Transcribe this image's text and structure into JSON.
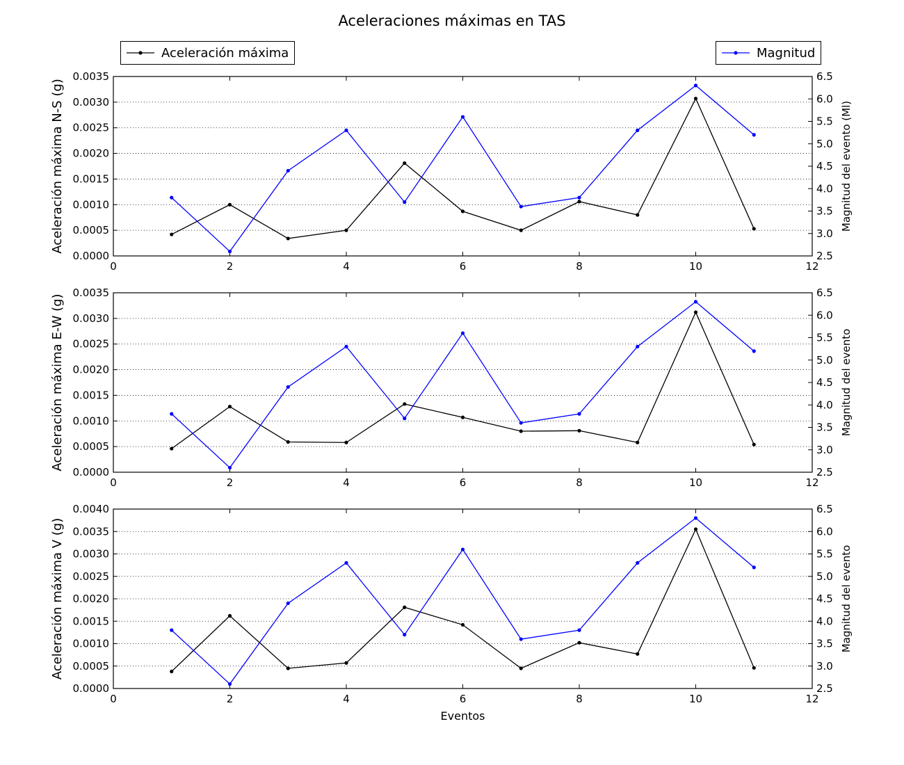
{
  "title": "Aceleraciones máximas en TAS",
  "legend": {
    "left": {
      "label": "Aceleración máxima",
      "color": "#000000"
    },
    "right": {
      "label": "Magnitud",
      "color": "#0000ff"
    }
  },
  "colors": {
    "acceleration": "#000000",
    "magnitude": "#0000ff",
    "grid": "#000000"
  },
  "chart_data": [
    {
      "type": "line",
      "x": [
        1,
        2,
        3,
        4,
        5,
        6,
        7,
        8,
        9,
        10,
        11
      ],
      "xlim": [
        0,
        12
      ],
      "xticks": [
        "0",
        "2",
        "4",
        "6",
        "8",
        "10",
        "12"
      ],
      "xlabel": "",
      "ylabel": "Aceleración máxima N-S (g)",
      "ylim": [
        0,
        0.0035
      ],
      "yticks": [
        "0.0000",
        "0.0005",
        "0.0010",
        "0.0015",
        "0.0020",
        "0.0025",
        "0.0030",
        "0.0035"
      ],
      "y2label": "Magnitud del evento (Ml)",
      "y2lim": [
        2.5,
        6.5
      ],
      "y2ticks": [
        "2.5",
        "3.0",
        "3.5",
        "4.0",
        "4.5",
        "5.0",
        "5.5",
        "6.0",
        "6.5"
      ],
      "grid": "horizontal dotted",
      "series": [
        {
          "name": "Aceleración máxima",
          "axis": "left",
          "color": "#000000",
          "values": [
            0.00042,
            0.001,
            0.00034,
            0.0005,
            0.00181,
            0.00087,
            0.0005,
            0.00106,
            0.0008,
            0.00307,
            0.00053
          ]
        },
        {
          "name": "Magnitud",
          "axis": "right",
          "color": "#0000ff",
          "values": [
            3.8,
            2.6,
            4.4,
            5.3,
            3.7,
            5.6,
            3.6,
            3.8,
            5.3,
            6.3,
            5.2
          ]
        }
      ]
    },
    {
      "type": "line",
      "x": [
        1,
        2,
        3,
        4,
        5,
        6,
        7,
        8,
        9,
        10,
        11
      ],
      "xlim": [
        0,
        12
      ],
      "xticks": [
        "0",
        "2",
        "4",
        "6",
        "8",
        "10",
        "12"
      ],
      "xlabel": "",
      "ylabel": "Aceleración máxima E-W (g)",
      "ylim": [
        0,
        0.0035
      ],
      "yticks": [
        "0.0000",
        "0.0005",
        "0.0010",
        "0.0015",
        "0.0020",
        "0.0025",
        "0.0030",
        "0.0035"
      ],
      "y2label": "Magnitud del evento",
      "y2lim": [
        2.5,
        6.5
      ],
      "y2ticks": [
        "2.5",
        "3.0",
        "3.5",
        "4.0",
        "4.5",
        "5.0",
        "5.5",
        "6.0",
        "6.5"
      ],
      "grid": "horizontal dotted",
      "series": [
        {
          "name": "Aceleración máxima",
          "axis": "left",
          "color": "#000000",
          "values": [
            0.00046,
            0.00128,
            0.00059,
            0.00058,
            0.00133,
            0.00107,
            0.0008,
            0.00081,
            0.00058,
            0.00312,
            0.00054
          ]
        },
        {
          "name": "Magnitud",
          "axis": "right",
          "color": "#0000ff",
          "values": [
            3.8,
            2.6,
            4.4,
            5.3,
            3.7,
            5.6,
            3.6,
            3.8,
            5.3,
            6.3,
            5.2
          ]
        }
      ]
    },
    {
      "type": "line",
      "x": [
        1,
        2,
        3,
        4,
        5,
        6,
        7,
        8,
        9,
        10,
        11
      ],
      "xlim": [
        0,
        12
      ],
      "xticks": [
        "0",
        "2",
        "4",
        "6",
        "8",
        "10",
        "12"
      ],
      "xlabel": "Eventos",
      "ylabel": "Aceleración máxima V (g)",
      "ylim": [
        0,
        0.004
      ],
      "yticks": [
        "0.0000",
        "0.0005",
        "0.0010",
        "0.0015",
        "0.0020",
        "0.0025",
        "0.0030",
        "0.0035",
        "0.0040"
      ],
      "y2label": "Magnitud del evento",
      "y2lim": [
        2.5,
        6.5
      ],
      "y2ticks": [
        "2.5",
        "3.0",
        "3.5",
        "4.0",
        "4.5",
        "5.0",
        "5.5",
        "6.0",
        "6.5"
      ],
      "grid": "horizontal dotted",
      "series": [
        {
          "name": "Aceleración máxima",
          "axis": "left",
          "color": "#000000",
          "values": [
            0.00038,
            0.00162,
            0.00045,
            0.00057,
            0.00181,
            0.00142,
            0.00045,
            0.00102,
            0.00077,
            0.00355,
            0.00046
          ]
        },
        {
          "name": "Magnitud",
          "axis": "right",
          "color": "#0000ff",
          "values": [
            3.8,
            2.6,
            4.4,
            5.3,
            3.7,
            5.6,
            3.6,
            3.8,
            5.3,
            6.3,
            5.2
          ]
        }
      ]
    }
  ]
}
